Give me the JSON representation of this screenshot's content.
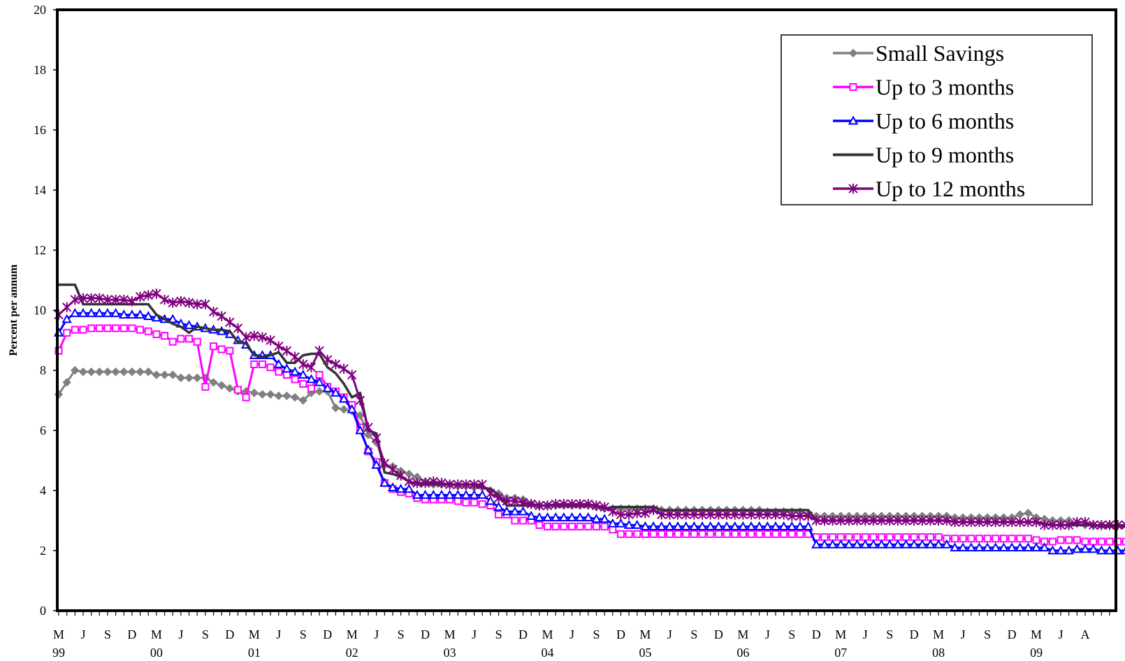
{
  "chart_data": {
    "type": "line",
    "title": "",
    "xlabel": "",
    "ylabel": "Percent per annum",
    "ylim": [
      0,
      20
    ],
    "yticks": [
      0,
      2,
      4,
      6,
      8,
      10,
      12,
      14,
      16,
      18,
      20
    ],
    "grid": false,
    "legend_position": "top-right",
    "x_start": "1999-03",
    "x_end": "2009-08",
    "month_labels": [
      "M",
      "J",
      "S",
      "D",
      "M",
      "J",
      "S",
      "D",
      "M",
      "J",
      "S",
      "D",
      "M",
      "J",
      "S",
      "D",
      "M",
      "J",
      "S",
      "D",
      "M",
      "J",
      "S",
      "D",
      "M",
      "J",
      "S",
      "D",
      "M",
      "J",
      "S",
      "D",
      "M",
      "J",
      "S",
      "D",
      "M",
      "J",
      "S",
      "D",
      "M",
      "J",
      "A"
    ],
    "year_labels": [
      "99",
      "00",
      "01",
      "02",
      "03",
      "04",
      "05",
      "06",
      "07",
      "08",
      "09"
    ],
    "series": [
      {
        "name": "Small Savings",
        "color": "#808080",
        "marker": "diamond",
        "values": [
          7.2,
          7.6,
          8.0,
          7.95,
          7.95,
          7.95,
          7.95,
          7.95,
          7.95,
          7.95,
          7.95,
          7.95,
          7.85,
          7.85,
          7.85,
          7.75,
          7.75,
          7.75,
          7.75,
          7.6,
          7.5,
          7.4,
          7.3,
          7.3,
          7.25,
          7.2,
          7.2,
          7.15,
          7.15,
          7.1,
          7.0,
          7.25,
          7.3,
          7.3,
          6.75,
          6.7,
          6.65,
          6.5,
          5.85,
          5.6,
          4.85,
          4.8,
          4.65,
          4.55,
          4.45,
          4.3,
          4.2,
          4.2,
          4.2,
          4.15,
          4.15,
          4.1,
          4.1,
          4.0,
          3.9,
          3.75,
          3.75,
          3.7,
          3.55,
          3.5,
          3.5,
          3.5,
          3.5,
          3.5,
          3.5,
          3.5,
          3.45,
          3.4,
          3.4,
          3.4,
          3.4,
          3.4,
          3.4,
          3.4,
          3.35,
          3.35,
          3.35,
          3.35,
          3.35,
          3.35,
          3.35,
          3.35,
          3.35,
          3.35,
          3.35,
          3.35,
          3.35,
          3.3,
          3.3,
          3.3,
          3.3,
          3.3,
          3.2,
          3.15,
          3.15,
          3.15,
          3.15,
          3.15,
          3.15,
          3.15,
          3.15,
          3.15,
          3.15,
          3.15,
          3.15,
          3.15,
          3.15,
          3.15,
          3.15,
          3.15,
          3.1,
          3.1,
          3.1,
          3.1,
          3.1,
          3.1,
          3.1,
          3.1,
          3.2,
          3.25,
          3.1,
          3.05,
          3.0,
          3.0,
          3.0,
          2.9,
          2.85,
          2.85,
          2.85,
          2.85
        ]
      },
      {
        "name": "Up to 3 months",
        "color": "#ff00ff",
        "marker": "square",
        "values": [
          8.65,
          9.25,
          9.35,
          9.35,
          9.4,
          9.4,
          9.4,
          9.4,
          9.4,
          9.4,
          9.35,
          9.3,
          9.2,
          9.15,
          8.95,
          9.05,
          9.05,
          8.95,
          7.45,
          8.8,
          8.7,
          8.65,
          7.35,
          7.1,
          8.2,
          8.2,
          8.1,
          7.95,
          7.85,
          7.7,
          7.55,
          7.4,
          7.85,
          7.45,
          7.3,
          7.1,
          6.85,
          6.1,
          5.3,
          4.95,
          4.25,
          4.05,
          3.95,
          3.9,
          3.75,
          3.7,
          3.7,
          3.7,
          3.7,
          3.65,
          3.6,
          3.6,
          3.55,
          3.5,
          3.2,
          3.2,
          3.0,
          3.0,
          3.0,
          2.85,
          2.8,
          2.8,
          2.8,
          2.8,
          2.8,
          2.8,
          2.8,
          2.8,
          2.7,
          2.55,
          2.55,
          2.55,
          2.55,
          2.55,
          2.55,
          2.55,
          2.55,
          2.55,
          2.55,
          2.55,
          2.55,
          2.55,
          2.55,
          2.55,
          2.55,
          2.55,
          2.55,
          2.55,
          2.55,
          2.55,
          2.55,
          2.55,
          2.55,
          2.45,
          2.45,
          2.45,
          2.45,
          2.45,
          2.45,
          2.45,
          2.45,
          2.45,
          2.45,
          2.45,
          2.45,
          2.45,
          2.45,
          2.45,
          2.45,
          2.4,
          2.4,
          2.4,
          2.4,
          2.4,
          2.4,
          2.4,
          2.4,
          2.4,
          2.4,
          2.4,
          2.35,
          2.3,
          2.3,
          2.35,
          2.35,
          2.35,
          2.3,
          2.3,
          2.3,
          2.3,
          2.3,
          2.3
        ]
      },
      {
        "name": "Up to 6 months",
        "color": "#0000ff",
        "marker": "triangle",
        "values": [
          9.25,
          9.7,
          9.9,
          9.9,
          9.9,
          9.9,
          9.9,
          9.9,
          9.85,
          9.85,
          9.85,
          9.8,
          9.75,
          9.7,
          9.7,
          9.55,
          9.5,
          9.45,
          9.4,
          9.35,
          9.3,
          9.2,
          9.0,
          8.85,
          8.5,
          8.5,
          8.5,
          8.2,
          8.05,
          7.95,
          7.85,
          7.7,
          7.6,
          7.4,
          7.25,
          7.05,
          6.7,
          6.0,
          5.35,
          4.85,
          4.25,
          4.1,
          4.05,
          4.05,
          3.85,
          3.85,
          3.85,
          3.85,
          3.85,
          3.85,
          3.85,
          3.85,
          3.85,
          3.65,
          3.45,
          3.3,
          3.3,
          3.3,
          3.15,
          3.1,
          3.1,
          3.1,
          3.1,
          3.1,
          3.1,
          3.1,
          3.05,
          3.05,
          2.9,
          2.9,
          2.85,
          2.85,
          2.8,
          2.8,
          2.8,
          2.8,
          2.8,
          2.8,
          2.8,
          2.8,
          2.8,
          2.8,
          2.8,
          2.8,
          2.8,
          2.8,
          2.8,
          2.8,
          2.8,
          2.8,
          2.8,
          2.8,
          2.8,
          2.2,
          2.2,
          2.2,
          2.2,
          2.2,
          2.2,
          2.2,
          2.2,
          2.2,
          2.2,
          2.2,
          2.2,
          2.2,
          2.2,
          2.2,
          2.2,
          2.2,
          2.1,
          2.1,
          2.1,
          2.1,
          2.1,
          2.1,
          2.1,
          2.1,
          2.1,
          2.1,
          2.1,
          2.1,
          2.0,
          2.0,
          2.0,
          2.05,
          2.05,
          2.05,
          2.0,
          2.0,
          2.0,
          2.0,
          2.0,
          2.0
        ]
      },
      {
        "name": "Up to 9 months",
        "color": "#333333",
        "marker": "none",
        "values": [
          10.85,
          10.85,
          10.85,
          10.2,
          10.2,
          10.2,
          10.2,
          10.2,
          10.2,
          10.2,
          10.2,
          10.2,
          9.85,
          9.7,
          9.55,
          9.45,
          9.25,
          9.45,
          9.4,
          9.35,
          9.35,
          9.3,
          8.95,
          8.9,
          8.5,
          8.45,
          8.5,
          8.6,
          8.25,
          8.25,
          8.5,
          8.55,
          8.55,
          8.1,
          7.9,
          7.55,
          7.1,
          7.25,
          6.0,
          5.9,
          4.6,
          4.55,
          4.45,
          4.3,
          4.2,
          4.2,
          4.2,
          4.2,
          4.2,
          4.2,
          4.2,
          4.2,
          4.1,
          4.05,
          3.85,
          3.5,
          3.5,
          3.5,
          3.5,
          3.5,
          3.5,
          3.5,
          3.5,
          3.5,
          3.5,
          3.5,
          3.5,
          3.4,
          3.45,
          3.45,
          3.45,
          3.45,
          3.45,
          3.45,
          3.35,
          3.35,
          3.35,
          3.35,
          3.35,
          3.35,
          3.35,
          3.35,
          3.35,
          3.35,
          3.35,
          3.35,
          3.35,
          3.35,
          3.35,
          3.35,
          3.35,
          3.35,
          3.35,
          3.0,
          3.0,
          3.0,
          3.0,
          3.0,
          3.0,
          3.0,
          3.0,
          3.0,
          3.0,
          3.0,
          3.0,
          3.0,
          3.0,
          3.0,
          3.0,
          3.0,
          2.95,
          2.95,
          2.95,
          2.95,
          2.95,
          2.95,
          2.95,
          2.95,
          2.95,
          2.95,
          2.95,
          2.9,
          2.85,
          2.85,
          2.85,
          2.85,
          2.85,
          2.85,
          2.8,
          2.8,
          2.8,
          2.8,
          2.8,
          2.8
        ]
      },
      {
        "name": "Up to 12 months",
        "color": "#800080",
        "marker": "star",
        "values": [
          9.85,
          10.1,
          10.35,
          10.4,
          10.4,
          10.4,
          10.35,
          10.35,
          10.35,
          10.3,
          10.45,
          10.5,
          10.55,
          10.35,
          10.25,
          10.3,
          10.25,
          10.2,
          10.2,
          9.95,
          9.8,
          9.6,
          9.4,
          9.1,
          9.15,
          9.1,
          9.0,
          8.8,
          8.65,
          8.45,
          8.2,
          8.1,
          8.65,
          8.35,
          8.2,
          8.05,
          7.85,
          7.0,
          6.1,
          5.75,
          4.9,
          4.7,
          4.5,
          4.3,
          4.25,
          4.25,
          4.3,
          4.25,
          4.2,
          4.2,
          4.2,
          4.2,
          4.2,
          3.9,
          3.75,
          3.65,
          3.65,
          3.6,
          3.55,
          3.5,
          3.5,
          3.55,
          3.55,
          3.55,
          3.55,
          3.55,
          3.5,
          3.45,
          3.3,
          3.2,
          3.2,
          3.25,
          3.25,
          3.35,
          3.2,
          3.2,
          3.2,
          3.2,
          3.2,
          3.2,
          3.2,
          3.2,
          3.2,
          3.2,
          3.2,
          3.2,
          3.2,
          3.2,
          3.2,
          3.2,
          3.15,
          3.15,
          3.15,
          3.0,
          3.0,
          3.0,
          3.0,
          3.0,
          3.0,
          3.0,
          3.0,
          3.0,
          3.0,
          3.0,
          3.0,
          3.0,
          3.0,
          3.0,
          3.0,
          3.0,
          2.95,
          2.95,
          2.95,
          2.95,
          2.95,
          2.95,
          2.95,
          2.95,
          2.95,
          2.95,
          2.95,
          2.85,
          2.85,
          2.85,
          2.85,
          2.95,
          2.95,
          2.85,
          2.85,
          2.85,
          2.85,
          2.85,
          2.85,
          2.85
        ]
      }
    ]
  }
}
